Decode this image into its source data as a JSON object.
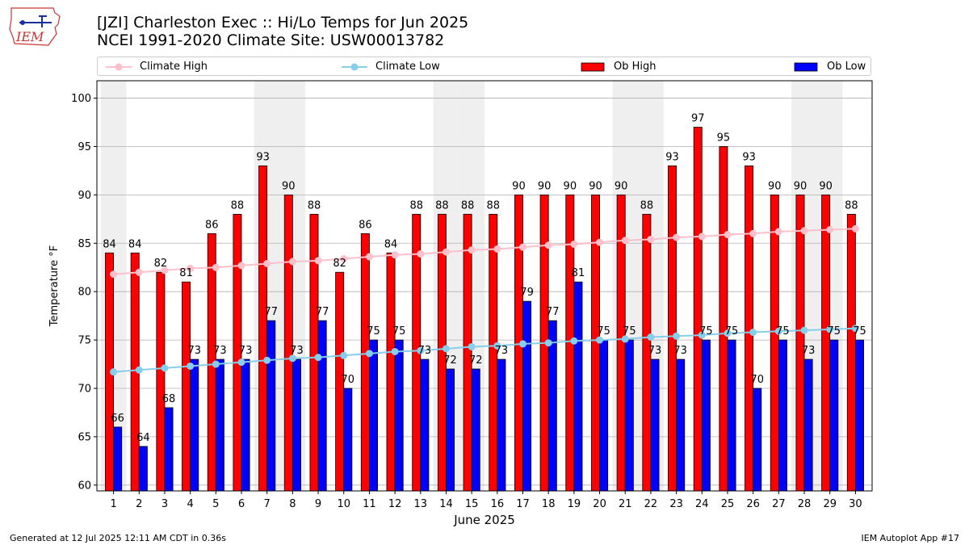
{
  "header": {
    "logo_text": "IEM",
    "title_line1": "[JZI] Charleston Exec :: Hi/Lo Temps for Jun 2025",
    "title_line2": "NCEI 1991-2020 Climate Site: USW00013782"
  },
  "legend": {
    "climate_high": "Climate High",
    "climate_low": "Climate Low",
    "ob_high": "Ob High",
    "ob_low": "Ob Low"
  },
  "footer": {
    "generated": "Generated at 12 Jul 2025 12:11 AM CDT in 0.36s",
    "app": "IEM Autoplot App #17"
  },
  "colors": {
    "ob_high": "#ff0000",
    "ob_low": "#0000ff",
    "climate_high": "#ffc0cb",
    "climate_low": "#87ceeb",
    "weekend_shade": "#efefef",
    "grid": "#b0b0b0"
  },
  "chart_data": {
    "type": "bar",
    "xlabel": "June 2025",
    "ylabel": "Temperature °F",
    "ylim": [
      59.4,
      101.8
    ],
    "yticks": [
      60,
      65,
      70,
      75,
      80,
      85,
      90,
      95,
      100
    ],
    "grid": "horizontal",
    "legend_position": "top",
    "categories": [
      "1",
      "2",
      "3",
      "4",
      "5",
      "6",
      "7",
      "8",
      "9",
      "10",
      "11",
      "12",
      "13",
      "14",
      "15",
      "16",
      "17",
      "18",
      "19",
      "20",
      "21",
      "22",
      "23",
      "24",
      "25",
      "26",
      "27",
      "28",
      "29",
      "30"
    ],
    "shaded_days": [
      1,
      7,
      8,
      14,
      15,
      21,
      22,
      28,
      29
    ],
    "series": [
      {
        "name": "Ob High",
        "kind": "bar",
        "values": [
          84,
          84,
          82,
          81,
          86,
          88,
          93,
          90,
          88,
          82,
          86,
          84,
          88,
          88,
          88,
          88,
          90,
          90,
          90,
          90,
          90,
          88,
          93,
          97,
          95,
          93,
          90,
          90,
          90,
          88
        ]
      },
      {
        "name": "Ob Low",
        "kind": "bar",
        "values": [
          66,
          64,
          68,
          73,
          73,
          73,
          77,
          73,
          77,
          70,
          75,
          75,
          73,
          72,
          72,
          73,
          79,
          77,
          81,
          75,
          75,
          73,
          73,
          75,
          75,
          70,
          75,
          73,
          75,
          75
        ]
      },
      {
        "name": "Climate High",
        "kind": "line",
        "values": [
          81.8,
          82.0,
          82.2,
          82.4,
          82.5,
          82.7,
          82.9,
          83.1,
          83.2,
          83.4,
          83.6,
          83.8,
          83.9,
          84.1,
          84.3,
          84.4,
          84.6,
          84.8,
          84.9,
          85.1,
          85.3,
          85.4,
          85.6,
          85.7,
          85.9,
          86.0,
          86.2,
          86.3,
          86.4,
          86.5
        ]
      },
      {
        "name": "Climate Low",
        "kind": "line",
        "values": [
          71.7,
          71.9,
          72.1,
          72.3,
          72.5,
          72.7,
          72.9,
          73.1,
          73.2,
          73.4,
          73.6,
          73.8,
          73.9,
          74.1,
          74.3,
          74.4,
          74.6,
          74.7,
          74.9,
          75.0,
          75.1,
          75.3,
          75.4,
          75.5,
          75.7,
          75.8,
          75.9,
          76.0,
          76.1,
          76.2
        ]
      }
    ]
  }
}
